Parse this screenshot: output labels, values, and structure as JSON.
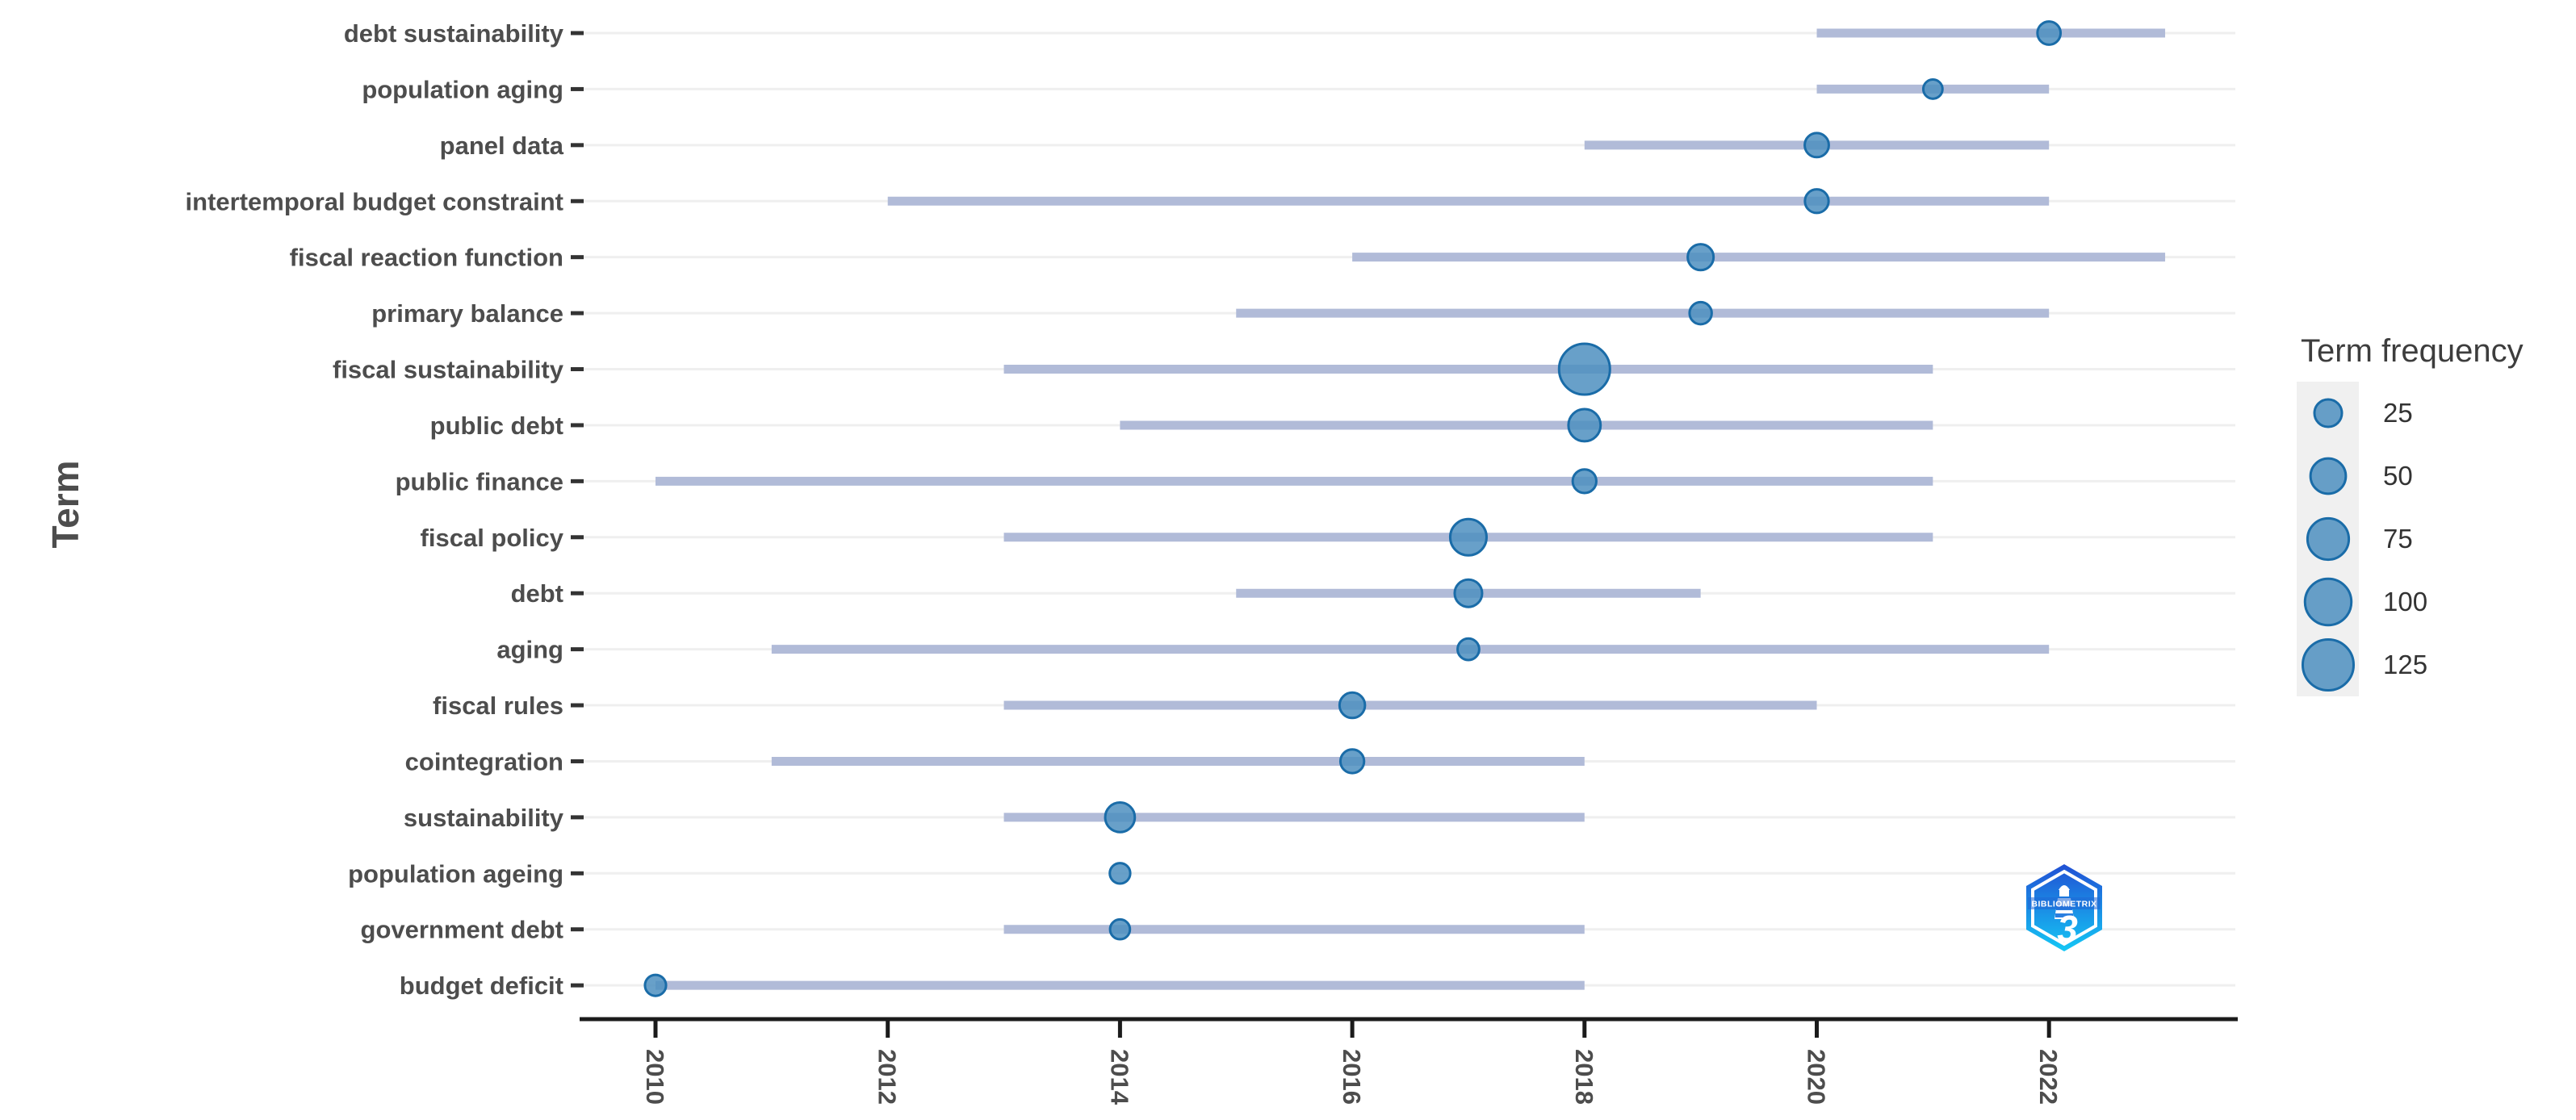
{
  "y_axis_title": "Term",
  "legend": {
    "title": "Term frequency",
    "sizes": [
      25,
      50,
      75,
      100,
      125
    ]
  },
  "logo": {
    "text": "BIBLIOMETRIX"
  },
  "colors": {
    "bubble_fill": "#4e8fc0",
    "bubble_stroke": "#1a6ca8",
    "trend_line": "#b1bbd8",
    "gridline": "#efefef",
    "axis_line": "#1b1b1b",
    "tick_label": "#4d4d4d",
    "legend_key_bg": "#f0f0f0",
    "logo_gradient_top": "#2150d4",
    "logo_gradient_bottom": "#14c8f5"
  },
  "chart_data": {
    "type": "scatter",
    "subtype": "trend-topics-bubble-timeline",
    "xlabel": "",
    "ylabel": "Term",
    "x_ticks": [
      "2010",
      "2012",
      "2014",
      "2016",
      "2018",
      "2020",
      "2022"
    ],
    "xlim": [
      2009.4,
      2023.6
    ],
    "legend_title": "Term frequency",
    "legend_sizes": [
      25,
      50,
      75,
      100,
      125
    ],
    "grid": "horizontal-only",
    "terms": [
      {
        "term": "debt sustainability",
        "year_q1": 2020,
        "year_peak": 2022,
        "year_q3": 2023,
        "frequency": 15
      },
      {
        "term": "population aging",
        "year_q1": 2020,
        "year_peak": 2021,
        "year_q3": 2022,
        "frequency": 8
      },
      {
        "term": "panel data",
        "year_q1": 2018,
        "year_peak": 2020,
        "year_q3": 2022,
        "frequency": 17
      },
      {
        "term": "intertemporal budget constraint",
        "year_q1": 2012,
        "year_peak": 2020,
        "year_q3": 2022,
        "frequency": 16
      },
      {
        "term": "fiscal reaction function",
        "year_q1": 2016,
        "year_peak": 2019,
        "year_q3": 2023,
        "frequency": 21
      },
      {
        "term": "primary balance",
        "year_q1": 2015,
        "year_peak": 2019,
        "year_q3": 2022,
        "frequency": 13
      },
      {
        "term": "fiscal sustainability",
        "year_q1": 2013,
        "year_peak": 2018,
        "year_q3": 2021,
        "frequency": 125
      },
      {
        "term": "public debt",
        "year_q1": 2014,
        "year_peak": 2018,
        "year_q3": 2021,
        "frequency": 39
      },
      {
        "term": "public finance",
        "year_q1": 2010,
        "year_peak": 2018,
        "year_q3": 2021,
        "frequency": 16
      },
      {
        "term": "fiscal policy",
        "year_q1": 2013,
        "year_peak": 2017,
        "year_q3": 2021,
        "frequency": 54
      },
      {
        "term": "debt",
        "year_q1": 2015,
        "year_peak": 2017,
        "year_q3": 2019,
        "frequency": 25
      },
      {
        "term": "aging",
        "year_q1": 2011,
        "year_peak": 2017,
        "year_q3": 2022,
        "frequency": 12
      },
      {
        "term": "fiscal rules",
        "year_q1": 2013,
        "year_peak": 2016,
        "year_q3": 2020,
        "frequency": 20
      },
      {
        "term": "cointegration",
        "year_q1": 2011,
        "year_peak": 2016,
        "year_q3": 2018,
        "frequency": 16
      },
      {
        "term": "sustainability",
        "year_q1": 2013,
        "year_peak": 2014,
        "year_q3": 2018,
        "frequency": 31
      },
      {
        "term": "population ageing",
        "year_q1": 2014,
        "year_peak": 2014,
        "year_q3": 2014,
        "frequency": 10
      },
      {
        "term": "government debt",
        "year_q1": 2013,
        "year_peak": 2014,
        "year_q3": 2018,
        "frequency": 9
      },
      {
        "term": "budget deficit",
        "year_q1": 2010,
        "year_peak": 2010,
        "year_q3": 2018,
        "frequency": 11
      }
    ]
  }
}
